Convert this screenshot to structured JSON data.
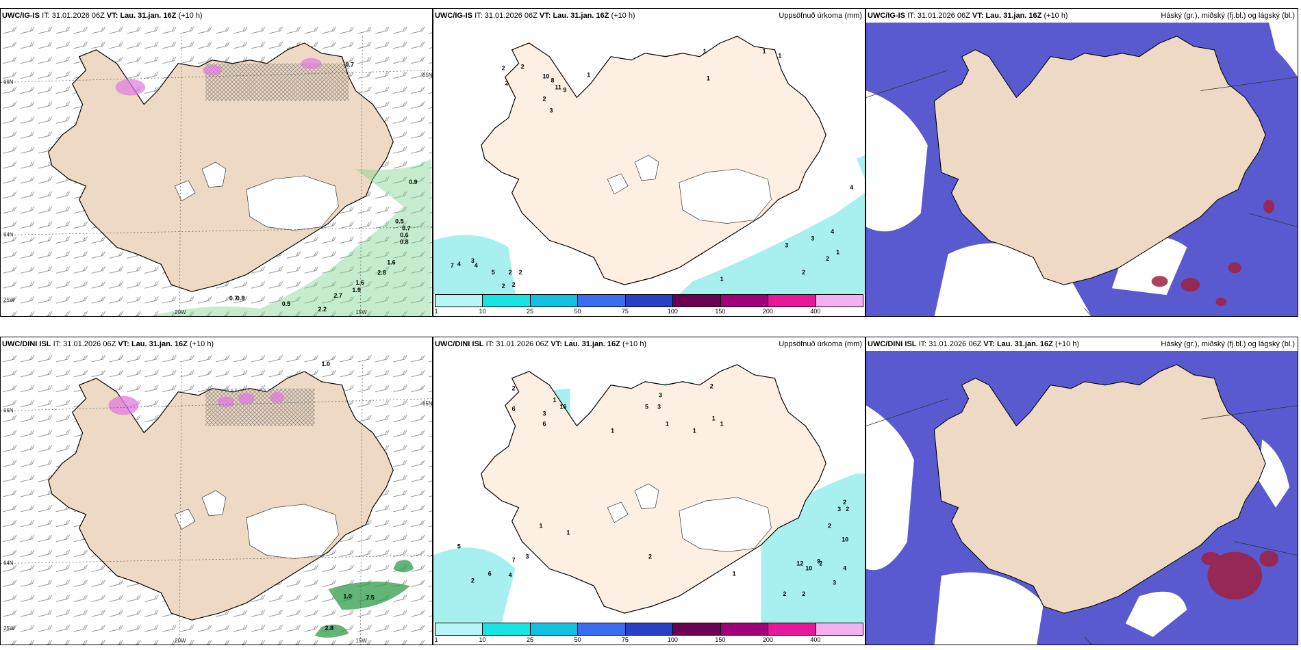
{
  "panels": [
    {
      "model": "UWC/IG-IS",
      "it_label": "IT:",
      "it": "31.01.2026 06Z",
      "vt_label": "VT:",
      "vt": "Lau. 31.jan. 16Z",
      "lead": "(+10 h)",
      "right_title": ""
    },
    {
      "model": "UWC/IG-IS",
      "it_label": "IT:",
      "it": "31.01.2026 06Z",
      "vt_label": "VT:",
      "vt": "Lau. 31.jan. 16Z",
      "lead": "(+10 h)",
      "right_title": "Uppsöfnuð úrkoma (mm)"
    },
    {
      "model": "UWC/IG-IS",
      "it_label": "IT:",
      "it": "31.01.2026 06Z",
      "vt_label": "VT:",
      "vt": "Lau. 31.jan. 16Z",
      "lead": "(+10 h)",
      "right_title": "Háský (gr.), miðský (fj.bl.) og lágský (bl.)"
    },
    {
      "model": "UWC/DINI ISL",
      "it_label": "IT:",
      "it": "31.01.2026 06Z",
      "vt_label": "VT:",
      "vt": "Lau. 31.jan. 16Z",
      "lead": "(+10 h)",
      "right_title": ""
    },
    {
      "model": "UWC/DINI ISL",
      "it_label": "IT:",
      "it": "31.01.2026 06Z",
      "vt_label": "VT:",
      "vt": "Lau. 31.jan. 16Z",
      "lead": "(+10 h)",
      "right_title": "Uppsöfnuð úrkoma (mm)"
    },
    {
      "model": "UWC/DINI ISL",
      "it_label": "IT:",
      "it": "31.01.2026 06Z",
      "vt_label": "VT:",
      "vt": "Lau. 31.jan. 16Z",
      "lead": "(+10 h)",
      "right_title": "Háský (gr.), miðský (fj.bl.) og lágský (bl.)"
    }
  ],
  "axis_labels": {
    "lat66": "66N",
    "lat64": "64N",
    "lat_top": "65N",
    "lon20": "20W",
    "lon15": "15W",
    "lon25": "25W"
  },
  "colorbar": {
    "ticks": [
      "1",
      "10",
      "25",
      "50",
      "75",
      "100",
      "150",
      "200",
      "400"
    ],
    "colors": [
      "#b8f5f5",
      "#19e3e3",
      "#12c0e0",
      "#3a6df0",
      "#2a3fc8",
      "#6b0050",
      "#a0007a",
      "#e8189a",
      "#f4b0f0"
    ]
  },
  "colors": {
    "land": "#eed9c4",
    "land_light": "#fdf0e2",
    "ice": "#ffffff",
    "cloud_high": "#5a5ad0",
    "cloud_low": "#3a8ef0",
    "precip": "#a8f0f0",
    "wind_green": "#7fd690",
    "snow_pink": "#e07ae0",
    "cloud_red": "#a02040"
  },
  "wind_labels_top": [
    "0.7",
    "0.9",
    "0.5",
    "0.7",
    "0.6",
    "0.8",
    "1.6",
    "2.8",
    "1.6",
    "1.9",
    "0.7",
    "0.8",
    "0.5",
    "2.7",
    "2.2"
  ],
  "wind_labels_bottom": [
    "1.0",
    "1.0",
    "7.5",
    "2.8"
  ],
  "precip_top": [
    "1",
    "2",
    "2",
    "2",
    "10",
    "8",
    "11",
    "9",
    "2",
    "3",
    "1",
    "1",
    "1",
    "1",
    "4",
    "4",
    "4",
    "3",
    "3",
    "3",
    "1",
    "2",
    "2",
    "2",
    "1",
    "7",
    "4",
    "5",
    "2",
    "2",
    "2"
  ],
  "precip_bottom": [
    "2",
    "6",
    "3",
    "6",
    "1",
    "16",
    "5",
    "3",
    "3",
    "2",
    "1",
    "1",
    "1",
    "1",
    "1",
    "1",
    "2",
    "3",
    "2",
    "2",
    "2",
    "10",
    "12",
    "10",
    "9",
    "4",
    "3",
    "2",
    "2",
    "5",
    "7",
    "6",
    "4",
    "3",
    "2",
    "1",
    "1",
    "1",
    "2"
  ]
}
